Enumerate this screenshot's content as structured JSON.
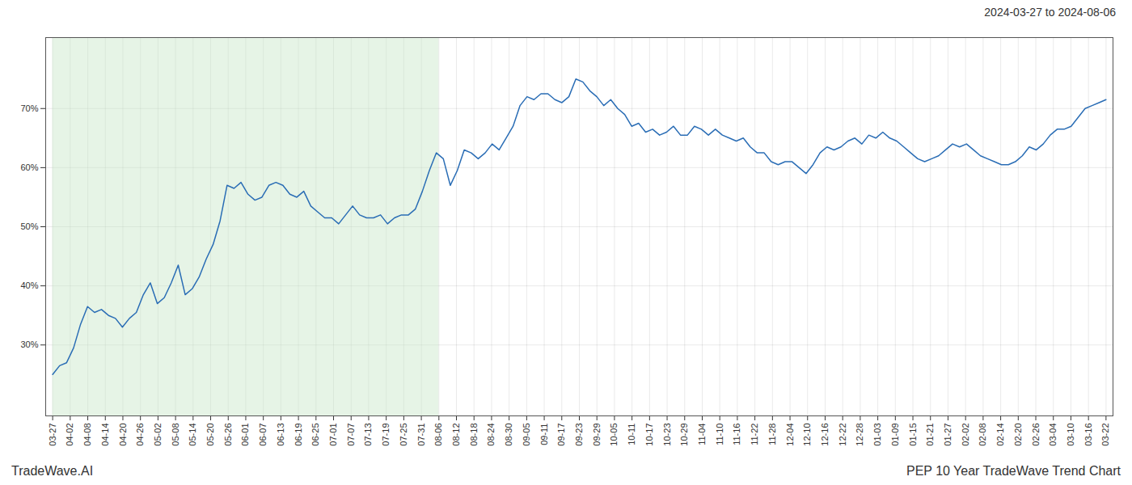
{
  "chart_data": {
    "type": "line",
    "title": "PEP 10 Year TradeWave Trend Chart",
    "subtitle": "2024-03-27 to 2024-08-06",
    "annotations": [
      "TradeWave.AI"
    ],
    "color": "#2a6db5",
    "grid": true,
    "shaded": {
      "from": "03-27",
      "to": "08-06",
      "color": "#c8e6c8"
    },
    "xlim": [
      -1,
      152
    ],
    "xticks": [
      {
        "value": 0,
        "label": "03-27"
      },
      {
        "value": 2.5166666666666666,
        "label": "04-02"
      },
      {
        "value": 5.033333333333333,
        "label": "04-08"
      },
      {
        "value": 7.55,
        "label": "04-14"
      },
      {
        "value": 10.066666666666666,
        "label": "04-20"
      },
      {
        "value": 12.583333333333334,
        "label": "04-26"
      },
      {
        "value": 15.1,
        "label": "05-02"
      },
      {
        "value": 17.616666666666667,
        "label": "05-08"
      },
      {
        "value": 20.133333333333333,
        "label": "05-14"
      },
      {
        "value": 22.65,
        "label": "05-20"
      },
      {
        "value": 25.166666666666668,
        "label": "05-26"
      },
      {
        "value": 27.683333333333334,
        "label": "06-01"
      },
      {
        "value": 30.2,
        "label": "06-07"
      },
      {
        "value": 32.71666666666667,
        "label": "06-13"
      },
      {
        "value": 35.233333333333334,
        "label": "06-19"
      },
      {
        "value": 37.75,
        "label": "06-25"
      },
      {
        "value": 40.266666666666666,
        "label": "07-01"
      },
      {
        "value": 42.78333333333333,
        "label": "07-07"
      },
      {
        "value": 45.3,
        "label": "07-13"
      },
      {
        "value": 47.81666666666667,
        "label": "07-19"
      },
      {
        "value": 50.333333333333336,
        "label": "07-25"
      },
      {
        "value": 52.85,
        "label": "07-31"
      },
      {
        "value": 55.36666666666667,
        "label": "08-06"
      },
      {
        "value": 57.88333333333333,
        "label": "08-12"
      },
      {
        "value": 60.4,
        "label": "08-18"
      },
      {
        "value": 62.916666666666664,
        "label": "08-24"
      },
      {
        "value": 65.43333333333334,
        "label": "08-30"
      },
      {
        "value": 67.95,
        "label": "09-05"
      },
      {
        "value": 70.46666666666667,
        "label": "09-11"
      },
      {
        "value": 72.98333333333333,
        "label": "09-17"
      },
      {
        "value": 75.5,
        "label": "09-23"
      },
      {
        "value": 78.01666666666667,
        "label": "09-29"
      },
      {
        "value": 80.53333333333333,
        "label": "10-05"
      },
      {
        "value": 83.05,
        "label": "10-11"
      },
      {
        "value": 85.56666666666666,
        "label": "10-17"
      },
      {
        "value": 88.08333333333333,
        "label": "10-23"
      },
      {
        "value": 90.6,
        "label": "10-29"
      },
      {
        "value": 93.11666666666666,
        "label": "11-04"
      },
      {
        "value": 95.63333333333334,
        "label": "11-10"
      },
      {
        "value": 98.15,
        "label": "11-16"
      },
      {
        "value": 100.66666666666667,
        "label": "11-22"
      },
      {
        "value": 103.18333333333334,
        "label": "11-28"
      },
      {
        "value": 105.7,
        "label": "12-04"
      },
      {
        "value": 108.21666666666667,
        "label": "12-10"
      },
      {
        "value": 110.73333333333333,
        "label": "12-16"
      },
      {
        "value": 113.25,
        "label": "12-22"
      },
      {
        "value": 115.76666666666667,
        "label": "12-28"
      },
      {
        "value": 118.28333333333333,
        "label": "01-03"
      },
      {
        "value": 120.8,
        "label": "01-09"
      },
      {
        "value": 123.31666666666666,
        "label": "01-15"
      },
      {
        "value": 125.83333333333333,
        "label": "01-21"
      },
      {
        "value": 128.35,
        "label": "01-27"
      },
      {
        "value": 130.86666666666667,
        "label": "02-02"
      },
      {
        "value": 133.38333333333333,
        "label": "02-08"
      },
      {
        "value": 135.9,
        "label": "02-14"
      },
      {
        "value": 138.41666666666666,
        "label": "02-20"
      },
      {
        "value": 140.93333333333334,
        "label": "02-26"
      },
      {
        "value": 143.45,
        "label": "03-04"
      },
      {
        "value": 145.96666666666667,
        "label": "03-10"
      },
      {
        "value": 148.48333333333332,
        "label": "03-16"
      },
      {
        "value": 151,
        "label": "03-22"
      }
    ],
    "ylim": [
      18,
      82
    ],
    "yticks": [
      {
        "value": 30,
        "label": "30%"
      },
      {
        "value": 40,
        "label": "40%"
      },
      {
        "value": 50,
        "label": "50%"
      },
      {
        "value": 60,
        "label": "60%"
      },
      {
        "value": 70,
        "label": "70%"
      }
    ],
    "x": [
      0,
      1,
      2,
      3,
      4,
      5,
      6,
      7,
      8,
      9,
      10,
      11,
      12,
      13,
      14,
      15,
      16,
      17,
      18,
      19,
      20,
      21,
      22,
      23,
      24,
      25,
      26,
      27,
      28,
      29,
      30,
      31,
      32,
      33,
      34,
      35,
      36,
      37,
      38,
      39,
      40,
      41,
      42,
      43,
      44,
      45,
      46,
      47,
      48,
      49,
      50,
      51,
      52,
      53,
      54,
      55,
      56,
      57,
      58,
      59,
      60,
      61,
      62,
      63,
      64,
      65,
      66,
      67,
      68,
      69,
      70,
      71,
      72,
      73,
      74,
      75,
      76,
      77,
      78,
      79,
      80,
      81,
      82,
      83,
      84,
      85,
      86,
      87,
      88,
      89,
      90,
      91,
      92,
      93,
      94,
      95,
      96,
      97,
      98,
      99,
      100,
      101,
      102,
      103,
      104,
      105,
      106,
      107,
      108,
      109,
      110,
      111,
      112,
      113,
      114,
      115,
      116,
      117,
      118,
      119,
      120,
      121,
      122,
      123,
      124,
      125,
      126,
      127,
      128,
      129,
      130,
      131,
      132,
      133,
      134,
      135,
      136,
      137,
      138,
      139,
      140,
      141,
      142,
      143,
      144,
      145,
      146,
      147,
      148,
      149,
      150,
      151
    ],
    "values": [
      25.0,
      26.5,
      27.0,
      29.5,
      33.5,
      36.5,
      35.5,
      36.0,
      35.0,
      34.5,
      33.0,
      34.5,
      35.5,
      38.5,
      40.5,
      37.0,
      38.0,
      40.5,
      43.5,
      38.5,
      39.5,
      41.5,
      44.5,
      47.0,
      51.0,
      57.0,
      56.5,
      57.5,
      55.5,
      54.5,
      55.0,
      57.0,
      57.5,
      57.0,
      55.5,
      55.0,
      56.0,
      53.5,
      52.5,
      51.5,
      51.5,
      50.5,
      52.0,
      53.5,
      52.0,
      51.5,
      51.5,
      52.0,
      50.5,
      51.5,
      52.0,
      52.0,
      53.0,
      56.0,
      59.5,
      62.5,
      61.5,
      57.0,
      59.5,
      63.0,
      62.5,
      61.5,
      62.5,
      64.0,
      63.0,
      65.0,
      67.0,
      70.5,
      72.0,
      71.5,
      72.5,
      72.5,
      71.5,
      71.0,
      72.0,
      75.0,
      74.5,
      73.0,
      72.0,
      70.5,
      71.5,
      70.0,
      69.0,
      67.0,
      67.5,
      66.0,
      66.5,
      65.5,
      66.0,
      67.0,
      65.5,
      65.5,
      67.0,
      66.5,
      65.5,
      66.5,
      65.5,
      65.0,
      64.5,
      65.0,
      63.5,
      62.5,
      62.5,
      61.0,
      60.5,
      61.0,
      61.0,
      60.0,
      59.0,
      60.5,
      62.5,
      63.5,
      63.0,
      63.5,
      64.5,
      65.0,
      64.0,
      65.5,
      65.0,
      66.0,
      65.0,
      64.5,
      63.5,
      62.5,
      61.5,
      61.0,
      61.5,
      62.0,
      63.0,
      64.0,
      63.5,
      64.0,
      63.0,
      62.0,
      61.5,
      61.0,
      60.5,
      60.5,
      61.0,
      62.0,
      63.5,
      63.0,
      64.0,
      65.5,
      66.5,
      66.5,
      67.0,
      68.5,
      70.0,
      70.5,
      71.0,
      71.5
    ]
  }
}
